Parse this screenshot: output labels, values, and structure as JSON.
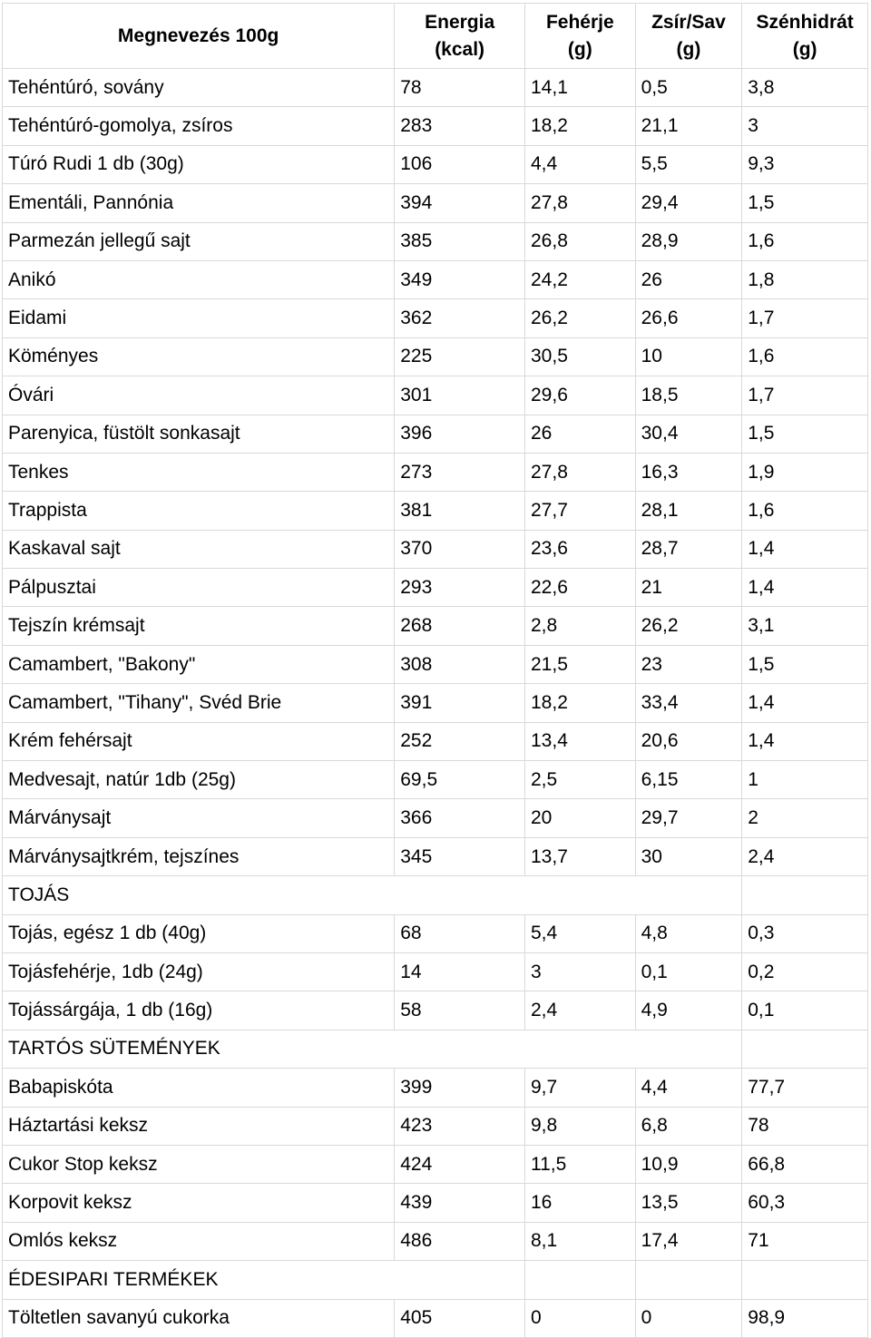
{
  "headers": [
    {
      "line1": "Megnevezés 100g",
      "line2": ""
    },
    {
      "line1": "Energia",
      "line2": "(kcal)"
    },
    {
      "line1": "Fehérje",
      "line2": "(g)"
    },
    {
      "line1": "Zsír/Sav",
      "line2": "(g)"
    },
    {
      "line1": "Szénhidrát",
      "line2": "(g)"
    }
  ],
  "rows": [
    {
      "type": "item",
      "cells": [
        "Tehéntúró, sovány",
        "78",
        "14,1",
        "0,5",
        "3,8"
      ]
    },
    {
      "type": "item",
      "cells": [
        "Tehéntúró-gomolya, zsíros",
        "283",
        "18,2",
        "21,1",
        "3"
      ]
    },
    {
      "type": "item",
      "cells": [
        "Túró Rudi 1 db (30g)",
        "106",
        "4,4",
        "5,5",
        "9,3"
      ]
    },
    {
      "type": "item",
      "cells": [
        "Ementáli, Pannónia",
        "394",
        "27,8",
        "29,4",
        "1,5"
      ]
    },
    {
      "type": "item",
      "cells": [
        "Parmezán jellegű sajt",
        "385",
        "26,8",
        "28,9",
        "1,6"
      ]
    },
    {
      "type": "item",
      "cells": [
        "Anikó",
        "349",
        "24,2",
        "26",
        "1,8"
      ]
    },
    {
      "type": "item",
      "cells": [
        "Eidami",
        "362",
        "26,2",
        "26,6",
        "1,7"
      ]
    },
    {
      "type": "item",
      "cells": [
        "Köményes",
        "225",
        "30,5",
        "10",
        "1,6"
      ]
    },
    {
      "type": "item",
      "cells": [
        "Óvári",
        "301",
        "29,6",
        "18,5",
        "1,7"
      ]
    },
    {
      "type": "item",
      "cells": [
        "Parenyica, füstölt sonkasajt",
        "396",
        "26",
        "30,4",
        "1,5"
      ]
    },
    {
      "type": "item",
      "cells": [
        "Tenkes",
        "273",
        "27,8",
        "16,3",
        "1,9"
      ]
    },
    {
      "type": "item",
      "cells": [
        "Trappista",
        "381",
        "27,7",
        "28,1",
        "1,6"
      ]
    },
    {
      "type": "item",
      "cells": [
        "Kaskaval sajt",
        "370",
        "23,6",
        "28,7",
        "1,4"
      ]
    },
    {
      "type": "item",
      "cells": [
        "Pálpusztai",
        "293",
        "22,6",
        "21",
        "1,4"
      ]
    },
    {
      "type": "item",
      "cells": [
        "Tejszín krémsajt",
        "268",
        "2,8",
        "26,2",
        "3,1"
      ]
    },
    {
      "type": "item",
      "cells": [
        "Camambert, \"Bakony\"",
        "308",
        "21,5",
        "23",
        "1,5"
      ]
    },
    {
      "type": "item",
      "cells": [
        "Camambert, \"Tihany\", Svéd Brie",
        "391",
        "18,2",
        "33,4",
        "1,4"
      ]
    },
    {
      "type": "item",
      "cells": [
        "Krém fehérsajt",
        "252",
        "13,4",
        "20,6",
        "1,4"
      ]
    },
    {
      "type": "item",
      "cells": [
        "Medvesajt, natúr 1db (25g)",
        "69,5",
        "2,5",
        "6,15",
        "1"
      ]
    },
    {
      "type": "item",
      "cells": [
        "Márványsajt",
        "366",
        "20",
        "29,7",
        "2"
      ]
    },
    {
      "type": "item",
      "cells": [
        "Márványsajtkrém, tejszínes",
        "345",
        "13,7",
        "30",
        "2,4"
      ]
    },
    {
      "type": "section",
      "label": "TOJÁS",
      "span": 4
    },
    {
      "type": "item",
      "cells": [
        "Tojás, egész 1 db (40g)",
        "68",
        "5,4",
        "4,8",
        "0,3"
      ]
    },
    {
      "type": "item",
      "cells": [
        "Tojásfehérje, 1db (24g)",
        "14",
        "3",
        "0,1",
        "0,2"
      ]
    },
    {
      "type": "item",
      "cells": [
        "Tojássárgája, 1 db (16g)",
        "58",
        "2,4",
        "4,9",
        "0,1"
      ]
    },
    {
      "type": "section",
      "label": "TARTÓS SÜTEMÉNYEK",
      "span": 4
    },
    {
      "type": "item",
      "cells": [
        "Babapiskóta",
        "399",
        "9,7",
        "4,4",
        "77,7"
      ]
    },
    {
      "type": "item",
      "cells": [
        "Háztartási keksz",
        "423",
        "9,8",
        "6,8",
        "78"
      ]
    },
    {
      "type": "item",
      "cells": [
        "Cukor Stop keksz",
        "424",
        "11,5",
        "10,9",
        "66,8"
      ]
    },
    {
      "type": "item",
      "cells": [
        "Korpovit keksz",
        "439",
        "16",
        "13,5",
        "60,3"
      ]
    },
    {
      "type": "item",
      "cells": [
        "Omlós keksz",
        "486",
        "8,1",
        "17,4",
        "71"
      ]
    },
    {
      "type": "section",
      "label": "ÉDESIPARI TERMÉKEK",
      "span": 2
    },
    {
      "type": "item",
      "cells": [
        "Töltetlen savanyú cukorka",
        "405",
        "0",
        "0",
        "98,9"
      ]
    }
  ]
}
